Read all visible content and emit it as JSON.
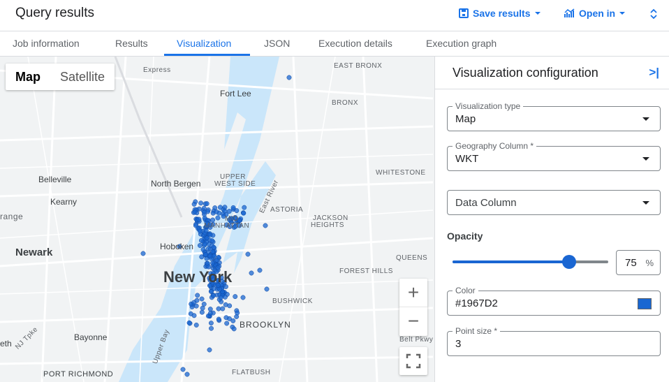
{
  "header": {
    "title": "Query results",
    "save_results": "Save results",
    "open_in": "Open in"
  },
  "tabs": [
    {
      "label": "Job information"
    },
    {
      "label": "Results"
    },
    {
      "label": "Visualization",
      "active": true
    },
    {
      "label": "JSON"
    },
    {
      "label": "Execution details"
    },
    {
      "label": "Execution graph"
    }
  ],
  "map": {
    "type_buttons": {
      "map": "Map",
      "satellite": "Satellite",
      "selected": "Map"
    },
    "labels": {
      "east_bronx": "EAST BRONX",
      "fort_lee": "Fort Lee",
      "bronx": "BRONX",
      "whitestone": "WHITESTONE",
      "belleville": "Belleville",
      "north_bergen": "North Bergen",
      "upper_west_side_1": "UPPER",
      "upper_west_side_2": "WEST SIDE",
      "kearny": "Kearny",
      "astoria": "ASTORIA",
      "jackson_heights_1": "JACKSON",
      "jackson_heights_2": "HEIGHTS",
      "midtown": "MID",
      "manhattan": "MANHATTAN",
      "newark": "Newark",
      "hoboken": "Hoboken",
      "new_york": "New York",
      "queens": "QUEENS",
      "forest_hills": "FOREST HILLS",
      "bushwick": "BUSHWICK",
      "brooklyn": "BROOKLYN",
      "bayonne": "Bayonne",
      "upper_bay": "Upper Bay",
      "flatbush": "FLATBUSH",
      "east_river": "East River",
      "belt_pkwy": "Belt Pkwy",
      "nj_tpke": "NJ Tpke",
      "port_richmond": "PORT RICHMOND",
      "orange": "range",
      "elizabeth": "eth",
      "palisades": "Express"
    },
    "point_color": "#1967D2",
    "zoom_in": "+",
    "zoom_out": "−"
  },
  "panel": {
    "title": "Visualization configuration",
    "visualization_type": {
      "label": "Visualization type",
      "value": "Map"
    },
    "geography_column": {
      "label": "Geography Column *",
      "value": "WKT"
    },
    "data_column": {
      "placeholder": "Data Column"
    },
    "opacity": {
      "label": "Opacity",
      "value": "75",
      "unit": "%",
      "percent": 75
    },
    "color": {
      "label": "Color",
      "value": "#1967D2"
    },
    "point_size": {
      "label": "Point size *",
      "value": "3"
    }
  }
}
